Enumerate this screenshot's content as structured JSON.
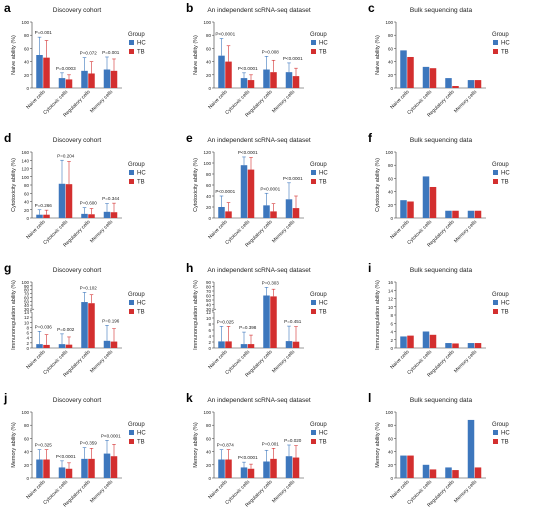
{
  "legend": {
    "title": "Group",
    "items": [
      {
        "label": "HC",
        "color": "#3d77bd"
      },
      {
        "label": "TB",
        "color": "#d32f2f"
      }
    ]
  },
  "row_titles": [
    "Discovery cohort",
    "An independent scRNA-seq dataset",
    "Bulk sequencing data"
  ],
  "chart_data": [
    {
      "panel": "a",
      "type": "bar",
      "title": "Discovery cohort",
      "ylabel": "Naive ability (%)",
      "categories": [
        "Naive cells",
        "Cytotoxic cells",
        "Regulatory cells",
        "Memory cells"
      ],
      "ylim": [
        0,
        100
      ],
      "yticks": [
        0,
        20,
        40,
        60,
        80,
        100
      ],
      "series": [
        {
          "name": "HC",
          "values": [
            50,
            15,
            26,
            28
          ]
        },
        {
          "name": "TB",
          "values": [
            46,
            13,
            22,
            26
          ]
        }
      ],
      "errors_hc": [
        27,
        8,
        20,
        19
      ],
      "errors_tb": [
        26,
        7,
        18,
        18
      ],
      "pvalues": [
        "P=0.001",
        "P=0.0003",
        "P=0.072",
        "P=0.001"
      ]
    },
    {
      "panel": "b",
      "type": "bar",
      "title": "An independent scRNA-seq dataset",
      "ylabel": "Naive ability (%)",
      "categories": [
        "Naive cells",
        "Cytotoxic cells",
        "Regulatory cells",
        "Memory cells"
      ],
      "ylim": [
        0,
        100
      ],
      "yticks": [
        0,
        20,
        40,
        60,
        80,
        100
      ],
      "series": [
        {
          "name": "HC",
          "values": [
            49,
            15,
            28,
            24
          ]
        },
        {
          "name": "TB",
          "values": [
            40,
            12,
            24,
            18
          ]
        }
      ],
      "errors_hc": [
        26,
        8,
        20,
        14
      ],
      "errors_tb": [
        24,
        8,
        18,
        12
      ],
      "pvalues": [
        "P<0.0001",
        "P<0.0001",
        "P=0.008",
        "P<0.0001"
      ]
    },
    {
      "panel": "c",
      "type": "bar",
      "title": "Bulk sequencing data",
      "ylabel": "Naive ability (%)",
      "categories": [
        "Naive cells",
        "Cytotoxic cells",
        "Regulatory cells",
        "Memory cells"
      ],
      "ylim": [
        0,
        100
      ],
      "yticks": [
        0,
        20,
        40,
        60,
        80,
        100
      ],
      "series": [
        {
          "name": "HC",
          "values": [
            57,
            32,
            15,
            12
          ]
        },
        {
          "name": "TB",
          "values": [
            47,
            30,
            3,
            12
          ]
        }
      ]
    },
    {
      "panel": "d",
      "type": "bar",
      "title": "Discovery cohort",
      "ylabel": "Cytotoxicity ability (%)",
      "categories": [
        "Naive cells",
        "Cytotoxic cells",
        "Regulatory cells",
        "Memory cells"
      ],
      "ylim": [
        0,
        160
      ],
      "yticks": [
        0,
        20,
        40,
        60,
        80,
        100,
        120,
        140,
        160
      ],
      "series": [
        {
          "name": "HC",
          "values": [
            8,
            83,
            10,
            15
          ]
        },
        {
          "name": "TB",
          "values": [
            8,
            82,
            9,
            14
          ]
        }
      ],
      "errors_hc": [
        12,
        57,
        15,
        20
      ],
      "errors_tb": [
        11,
        55,
        14,
        22
      ],
      "pvalues": [
        "P=0.266",
        "P=0.204",
        "P=0.600",
        "P=0.344"
      ]
    },
    {
      "panel": "e",
      "type": "bar",
      "title": "An independent scRNA-seq dataset",
      "ylabel": "Cytotoxicity ability (%)",
      "categories": [
        "Naive cells",
        "Cytotoxic cells",
        "Regulatory cells",
        "Memory cells"
      ],
      "ylim": [
        0,
        120
      ],
      "yticks": [
        0,
        20,
        40,
        60,
        80,
        100,
        120
      ],
      "series": [
        {
          "name": "HC",
          "values": [
            20,
            96,
            23,
            34
          ]
        },
        {
          "name": "TB",
          "values": [
            12,
            88,
            12,
            18
          ]
        }
      ],
      "errors_hc": [
        20,
        15,
        22,
        30
      ],
      "errors_tb": [
        16,
        22,
        14,
        22
      ],
      "pvalues": [
        "P<0.0001",
        "P<0.0001",
        "P<0.0001",
        "P<0.0001"
      ]
    },
    {
      "panel": "f",
      "type": "bar",
      "title": "Bulk sequencing data",
      "ylabel": "Cytotoxicity ability (%)",
      "categories": [
        "Naive cells",
        "Cytotoxic cells",
        "Regulatory cells",
        "Memory cells"
      ],
      "ylim": [
        0,
        100
      ],
      "yticks": [
        0,
        20,
        40,
        60,
        80,
        100
      ],
      "series": [
        {
          "name": "HC",
          "values": [
            27,
            63,
            11,
            11
          ]
        },
        {
          "name": "TB",
          "values": [
            25,
            47,
            11,
            11
          ]
        }
      ]
    },
    {
      "panel": "g",
      "type": "bar",
      "title": "Discovery cohort",
      "ylabel": "Immunoregulation ability (%)",
      "y_axis_break": true,
      "break_range": [
        14,
        30
      ],
      "categories": [
        "Naive cells",
        "Cytotoxic cells",
        "Regulatory cells",
        "Memory cells"
      ],
      "yticks_lower": [
        0,
        2,
        4,
        6,
        8,
        10,
        12,
        14
      ],
      "yticks_upper": [
        30,
        40,
        50,
        60,
        70,
        80,
        90,
        100
      ],
      "series": [
        {
          "name": "HC",
          "values": [
            1.5,
            1.5,
            48,
            2.8
          ]
        },
        {
          "name": "TB",
          "values": [
            1.2,
            1.3,
            45,
            2.5
          ]
        }
      ],
      "errors_hc": [
        5,
        4,
        25,
        6
      ],
      "errors_tb": [
        4,
        3,
        22,
        5
      ],
      "pvalues": [
        "P=0.036",
        "P=0.002",
        "P=0.102",
        "P=0.196"
      ]
    },
    {
      "panel": "h",
      "type": "bar",
      "title": "An independent scRNA-seq dataset",
      "ylabel": "Immunoregulation ability (%)",
      "y_axis_break": true,
      "break_range": [
        12,
        30
      ],
      "categories": [
        "Naive cells",
        "Cytotoxic cells",
        "Regulatory cells",
        "Memory cells"
      ],
      "yticks_lower": [
        0,
        2,
        4,
        6,
        8,
        10,
        12
      ],
      "yticks_upper": [
        30,
        40,
        50,
        60,
        70,
        80,
        90
      ],
      "series": [
        {
          "name": "HC",
          "values": [
            2.2,
            1.3,
            60,
            2.3
          ]
        },
        {
          "name": "TB",
          "values": [
            2.2,
            1.3,
            58,
            2.1
          ]
        }
      ],
      "errors_hc": [
        5,
        4,
        18,
        5
      ],
      "errors_tb": [
        5,
        3,
        16,
        5
      ],
      "pvalues": [
        "P=0.025",
        "P=0.398",
        "P=0.303",
        "P=0.451"
      ]
    },
    {
      "panel": "i",
      "type": "bar",
      "title": "Bulk sequencing data",
      "ylabel": "Immunoregulation ability (%)",
      "categories": [
        "Naive cells",
        "Cytotoxic cells",
        "Regulatory cells",
        "Memory cells"
      ],
      "ylim": [
        0,
        16
      ],
      "yticks": [
        0,
        2,
        4,
        6,
        8,
        10,
        12,
        14,
        16
      ],
      "series": [
        {
          "name": "HC",
          "values": [
            2.8,
            4,
            1.2,
            1.2
          ]
        },
        {
          "name": "TB",
          "values": [
            3,
            3.2,
            1.1,
            1.2
          ]
        }
      ]
    },
    {
      "panel": "j",
      "type": "bar",
      "title": "Discovery cohort",
      "ylabel": "Memory ability (%)",
      "categories": [
        "Naive cells",
        "Cytotoxic cells",
        "Regulatory cells",
        "Memory cells"
      ],
      "ylim": [
        0,
        100
      ],
      "yticks": [
        0,
        20,
        40,
        60,
        80,
        100
      ],
      "series": [
        {
          "name": "HC",
          "values": [
            28,
            16,
            29,
            37
          ]
        },
        {
          "name": "TB",
          "values": [
            28,
            14,
            29,
            33
          ]
        }
      ],
      "errors_hc": [
        15,
        10,
        17,
        20
      ],
      "errors_tb": [
        15,
        9,
        16,
        18
      ],
      "pvalues": [
        "P=0.325",
        "P<0.0001",
        "P=0.359",
        "P<0.0001"
      ]
    },
    {
      "panel": "k",
      "type": "bar",
      "title": "An independent scRNA-seq dataset",
      "ylabel": "Memory ability (%)",
      "categories": [
        "Naive cells",
        "Cytotoxic cells",
        "Regulatory cells",
        "Memory cells"
      ],
      "ylim": [
        0,
        100
      ],
      "yticks": [
        0,
        20,
        40,
        60,
        80,
        100
      ],
      "series": [
        {
          "name": "HC",
          "values": [
            28,
            16,
            25,
            33
          ]
        },
        {
          "name": "TB",
          "values": [
            28,
            14,
            29,
            31
          ]
        }
      ],
      "errors_hc": [
        15,
        8,
        17,
        17
      ],
      "errors_tb": [
        15,
        7,
        16,
        18
      ],
      "pvalues": [
        "P=0.874",
        "P<0.0001",
        "P=0.001",
        "P=0.020"
      ]
    },
    {
      "panel": "l",
      "type": "bar",
      "title": "Bulk sequencing data",
      "ylabel": "Memory ability (%)",
      "categories": [
        "Naive cells",
        "Cytotoxic cells",
        "Regulatory cells",
        "Memory cells"
      ],
      "ylim": [
        0,
        100
      ],
      "yticks": [
        0,
        20,
        40,
        60,
        80,
        100
      ],
      "series": [
        {
          "name": "HC",
          "values": [
            34,
            20,
            16,
            88
          ]
        },
        {
          "name": "TB",
          "values": [
            34,
            13,
            12,
            16
          ]
        }
      ]
    }
  ]
}
